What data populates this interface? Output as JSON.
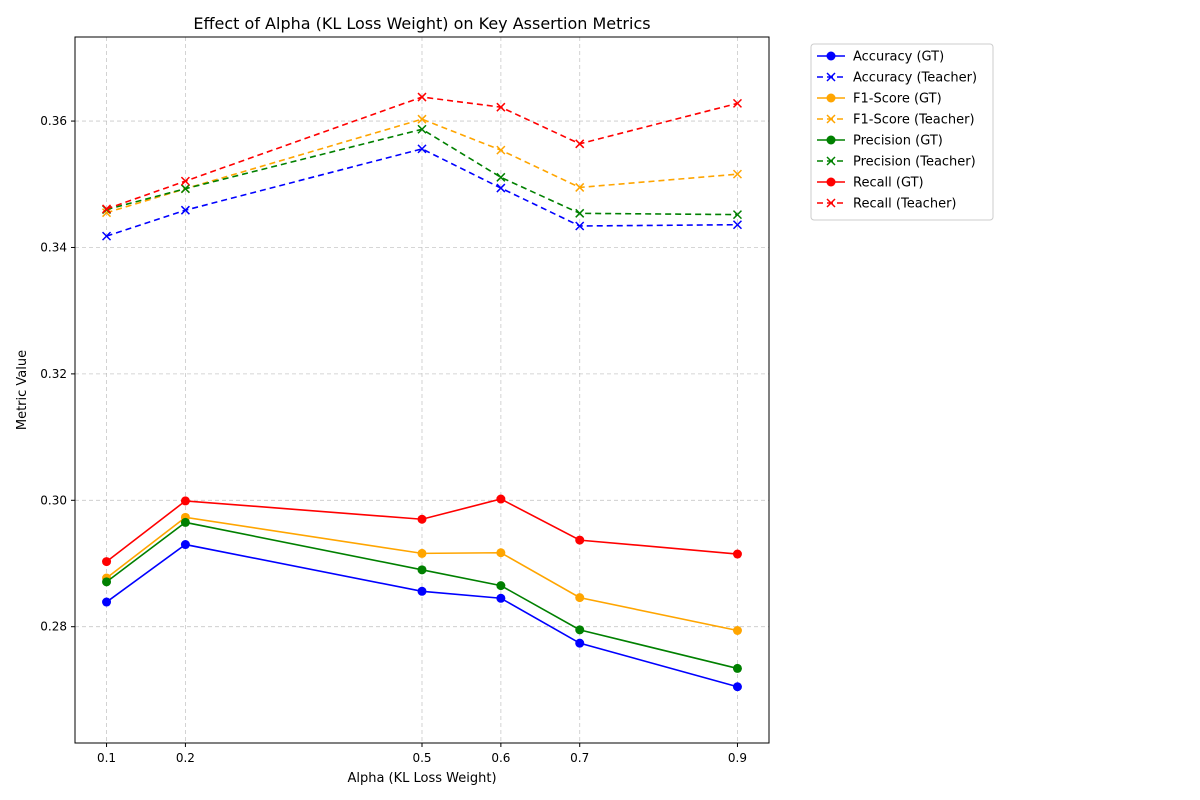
{
  "chart_data": {
    "type": "line",
    "title": "Effect of Alpha (KL Loss Weight) on Key Assertion Metrics",
    "xlabel": "Alpha (KL Loss Weight)",
    "ylabel": "Metric Value",
    "x": [
      0.1,
      0.2,
      0.5,
      0.6,
      0.7,
      0.9
    ],
    "x_tick_labels": [
      "0.1",
      "0.2",
      "0.5",
      "0.6",
      "0.7",
      "0.9"
    ],
    "xlim": [
      0.06,
      0.94
    ],
    "ylim": [
      0.2616,
      0.3733
    ],
    "y_ticks": [
      0.28,
      0.3,
      0.32,
      0.34,
      0.36
    ],
    "y_tick_labels": [
      "0.28",
      "0.30",
      "0.32",
      "0.34",
      "0.36"
    ],
    "grid": true,
    "legend_position": "outside-top-right",
    "series": [
      {
        "name": "Accuracy (GT)",
        "color": "#0000ff",
        "style": "solid",
        "marker": "circle",
        "values": [
          0.2839,
          0.293,
          0.2856,
          0.2845,
          0.2774,
          0.2705
        ]
      },
      {
        "name": "Accuracy (Teacher)",
        "color": "#0000ff",
        "style": "dashed",
        "marker": "x",
        "values": [
          0.3418,
          0.3459,
          0.3556,
          0.3494,
          0.3434,
          0.3436
        ]
      },
      {
        "name": "F1-Score (GT)",
        "color": "#ffa500",
        "style": "solid",
        "marker": "circle",
        "values": [
          0.2877,
          0.2973,
          0.2916,
          0.2917,
          0.2846,
          0.2794
        ]
      },
      {
        "name": "F1-Score (Teacher)",
        "color": "#ffa500",
        "style": "dashed",
        "marker": "x",
        "values": [
          0.3455,
          0.3493,
          0.3603,
          0.3554,
          0.3495,
          0.3516
        ]
      },
      {
        "name": "Precision (GT)",
        "color": "#008000",
        "style": "solid",
        "marker": "circle",
        "values": [
          0.2871,
          0.2965,
          0.289,
          0.2865,
          0.2795,
          0.2734
        ]
      },
      {
        "name": "Precision (Teacher)",
        "color": "#008000",
        "style": "dashed",
        "marker": "x",
        "values": [
          0.346,
          0.3493,
          0.3587,
          0.3511,
          0.3454,
          0.3452
        ]
      },
      {
        "name": "Recall (GT)",
        "color": "#ff0000",
        "style": "solid",
        "marker": "circle",
        "values": [
          0.2903,
          0.2999,
          0.297,
          0.3002,
          0.2937,
          0.2915
        ]
      },
      {
        "name": "Recall (Teacher)",
        "color": "#ff0000",
        "style": "dashed",
        "marker": "x",
        "values": [
          0.3461,
          0.3505,
          0.3638,
          0.3622,
          0.3564,
          0.3628
        ]
      }
    ]
  }
}
